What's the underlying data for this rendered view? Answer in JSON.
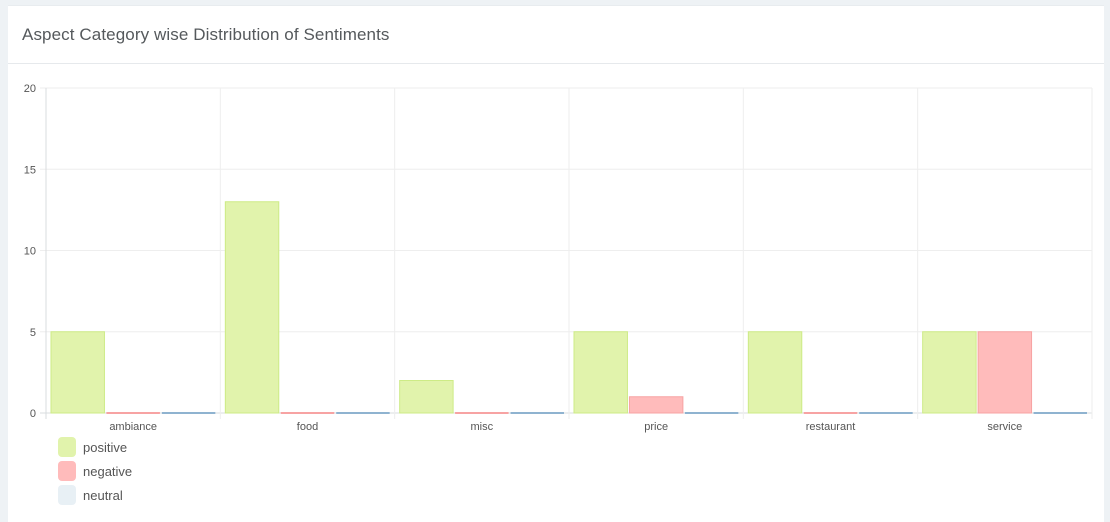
{
  "card": {
    "title": "Aspect Category wise Distribution of Sentiments"
  },
  "chart_data": {
    "type": "bar",
    "categories": [
      "ambiance",
      "food",
      "misc",
      "price",
      "restaurant",
      "service"
    ],
    "series": [
      {
        "name": "positive",
        "values": [
          5,
          13,
          2,
          5,
          5,
          5
        ],
        "fill": "#e1f3ac",
        "stroke": "#cdeb86"
      },
      {
        "name": "negative",
        "values": [
          0,
          0,
          0,
          1,
          0,
          5
        ],
        "fill": "#ffbbbb",
        "stroke": "#f7a3a3"
      },
      {
        "name": "neutral",
        "values": [
          0,
          0,
          0,
          0,
          0,
          0
        ],
        "fill": "#e8f0f5",
        "stroke": "#8fb3d0"
      }
    ],
    "ylim": [
      0,
      20
    ],
    "yticks": [
      0,
      5,
      10,
      15,
      20
    ],
    "grid": true,
    "legend_position": "bottom-left"
  }
}
